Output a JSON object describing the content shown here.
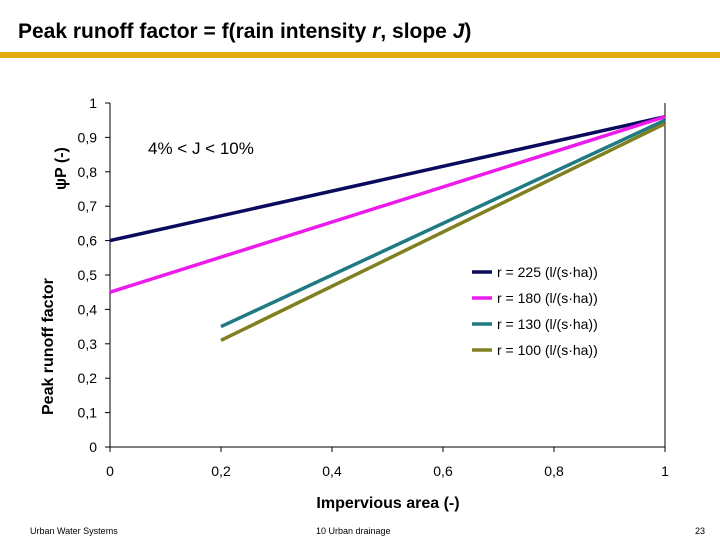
{
  "slide": {
    "title_prefix": "Peak runoff factor = f(rain intensity ",
    "title_r": "r",
    "title_mid": ", slope ",
    "title_j": "J",
    "title_suffix": ")",
    "footer_left": "Urban Water Systems",
    "footer_center": "10 Urban drainage",
    "footer_right": "23"
  },
  "colors": {
    "title_rule": "#e2ac10"
  },
  "chart_data": {
    "type": "line",
    "xlabel": "Impervious area  (-)",
    "ylabel": "Peak runoff factor",
    "ylabel_symbol": "ψP  (-)",
    "annotation": "4% <  J  < 10%",
    "xlim": [
      0,
      1
    ],
    "ylim": [
      0,
      1
    ],
    "x_ticks": [
      0,
      0.2,
      0.4,
      0.6,
      0.8,
      1
    ],
    "x_tick_labels": [
      "0",
      "0,2",
      "0,4",
      "0,6",
      "0,8",
      "1"
    ],
    "y_ticks": [
      0,
      0.1,
      0.2,
      0.3,
      0.4,
      0.5,
      0.6,
      0.7,
      0.8,
      0.9,
      1
    ],
    "y_tick_labels": [
      "0",
      "0,1",
      "0,2",
      "0,3",
      "0,4",
      "0,5",
      "0,6",
      "0,7",
      "0,8",
      "0,9",
      "1"
    ],
    "grid": false,
    "legend_position": "right",
    "series": [
      {
        "name": "r = 225  (l/(s·ha))",
        "color": "#0b0b5e",
        "x": [
          0,
          1
        ],
        "y": [
          0.6,
          0.96
        ]
      },
      {
        "name": "r = 180  (l/(s·ha))",
        "color": "#ec1bec",
        "x": [
          0,
          1
        ],
        "y": [
          0.45,
          0.96
        ]
      },
      {
        "name": "r = 130  (l/(s·ha))",
        "color": "#1f7a84",
        "x": [
          0.2,
          1
        ],
        "y": [
          0.35,
          0.95
        ]
      },
      {
        "name": "r = 100  (l/(s·ha))",
        "color": "#808020",
        "x": [
          0.2,
          1
        ],
        "y": [
          0.31,
          0.94
        ]
      }
    ]
  }
}
